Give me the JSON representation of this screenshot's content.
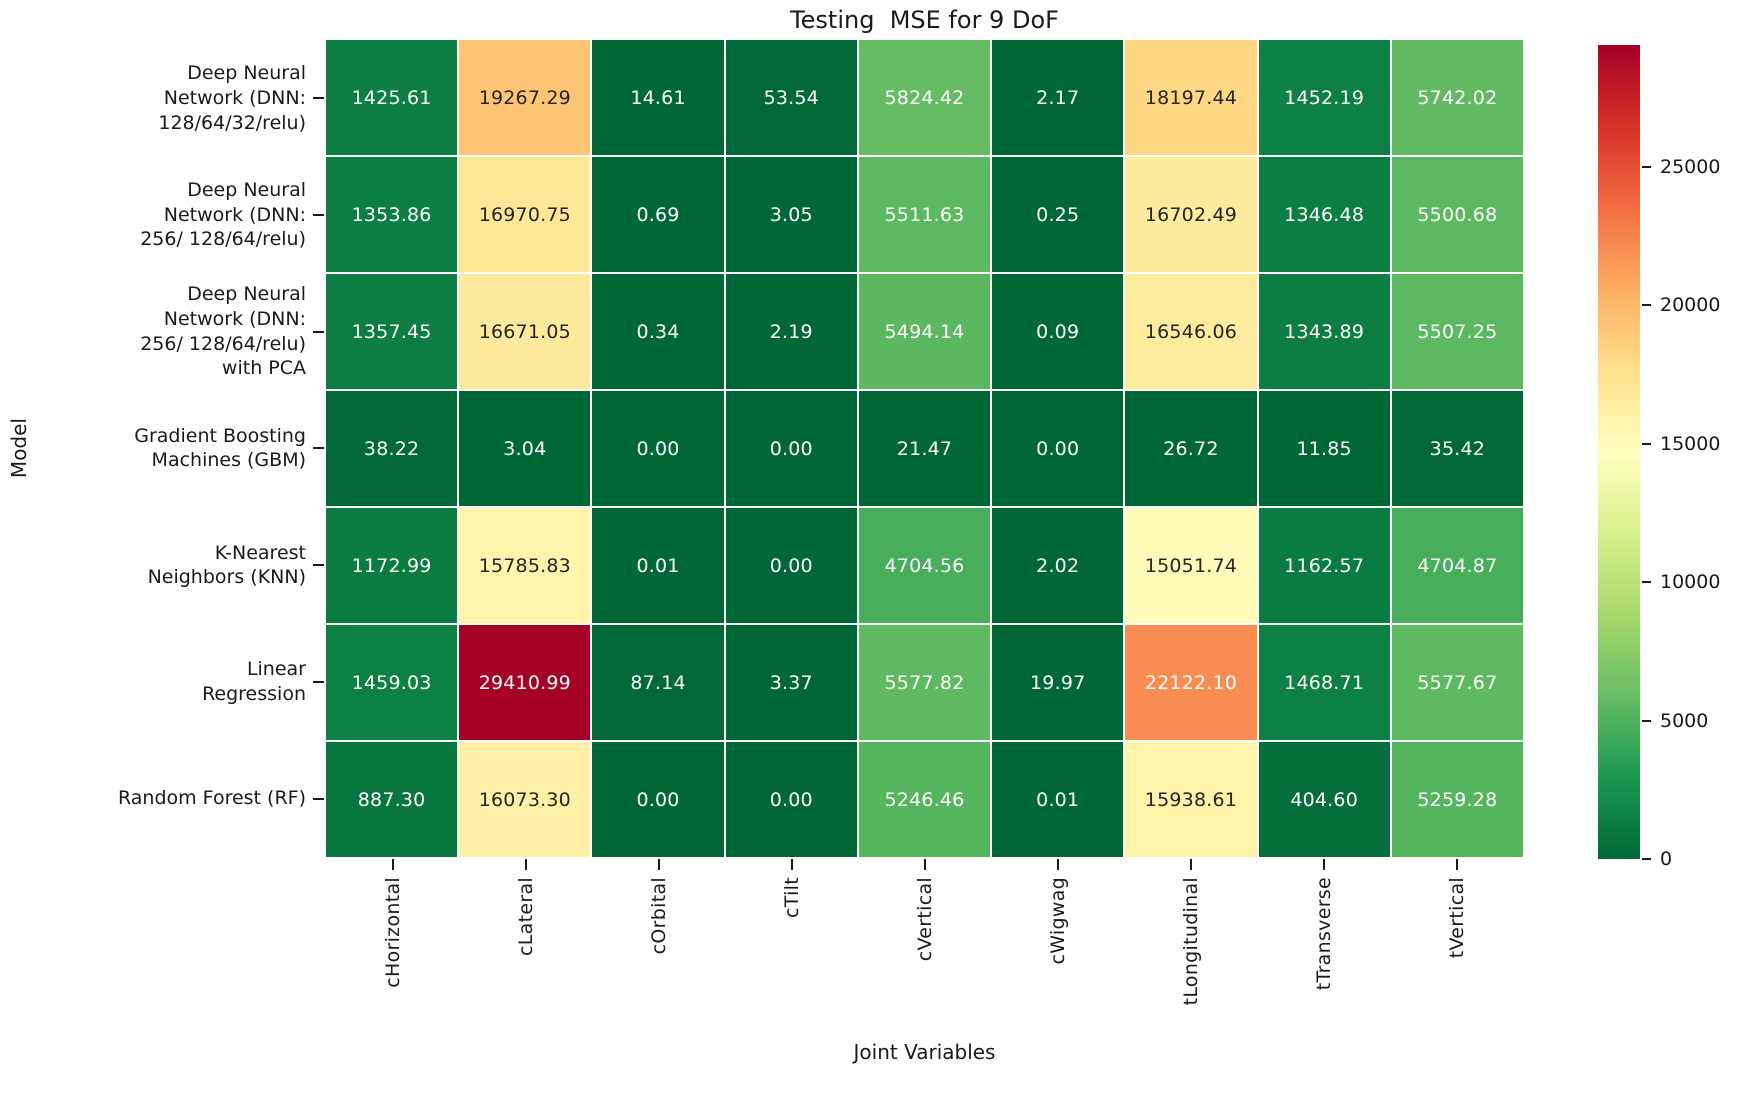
{
  "chart_data": {
    "type": "heatmap",
    "title": "Testing  MSE for 9 DoF",
    "xlabel": "Joint Variables",
    "ylabel": "Model",
    "x_categories": [
      "cHorizontal",
      "cLateral",
      "cOrbital",
      "cTilt",
      "cVertical",
      "cWigwag",
      "tLongitudinal",
      "tTransverse",
      "tVertical"
    ],
    "series": [
      {
        "name": "Deep Neural Network (DNN: 128/64/32/relu)",
        "label_lines": "Deep Neural\nNetwork (DNN:\n128/64/32/relu)",
        "values": [
          1425.61,
          19267.29,
          14.61,
          53.54,
          5824.42,
          2.17,
          18197.44,
          1452.19,
          5742.02
        ]
      },
      {
        "name": "Deep Neural Network (DNN: 256/ 128/64/relu)",
        "label_lines": "Deep Neural\nNetwork (DNN:\n256/ 128/64/relu)",
        "values": [
          1353.86,
          16970.75,
          0.69,
          3.05,
          5511.63,
          0.25,
          16702.49,
          1346.48,
          5500.68
        ]
      },
      {
        "name": "Deep Neural Network (DNN: 256/ 128/64/relu) with PCA",
        "label_lines": "Deep Neural\nNetwork (DNN:\n256/ 128/64/relu)\nwith PCA",
        "values": [
          1357.45,
          16671.05,
          0.34,
          2.19,
          5494.14,
          0.09,
          16546.06,
          1343.89,
          5507.25
        ]
      },
      {
        "name": "Gradient Boosting Machines (GBM)",
        "label_lines": "Gradient Boosting\nMachines (GBM)",
        "values": [
          38.22,
          3.04,
          0.0,
          0.0,
          21.47,
          0.0,
          26.72,
          11.85,
          35.42
        ]
      },
      {
        "name": "K-Nearest Neighbors (KNN)",
        "label_lines": "K-Nearest\nNeighbors (KNN)",
        "values": [
          1172.99,
          15785.83,
          0.01,
          0.0,
          4704.56,
          2.02,
          15051.74,
          1162.57,
          4704.87
        ]
      },
      {
        "name": "Linear Regression",
        "label_lines": "Linear\nRegression",
        "values": [
          1459.03,
          29410.99,
          87.14,
          3.37,
          5577.82,
          19.97,
          22122.1,
          1468.71,
          5577.67
        ]
      },
      {
        "name": "Random Forest (RF)",
        "label_lines": "Random Forest (RF)",
        "values": [
          887.3,
          16073.3,
          0.0,
          0.0,
          5246.46,
          0.01,
          15938.61,
          404.6,
          5259.28
        ]
      }
    ],
    "value_decimals": 2,
    "vmin": 0,
    "vmax": 29410.99,
    "colorbar_ticks": [
      0,
      5000,
      10000,
      15000,
      20000,
      25000
    ],
    "colormap": {
      "name": "RdYlGn_r",
      "anchors_low_to_high": [
        "#006837",
        "#1a9850",
        "#66bd63",
        "#a6d96a",
        "#d9ef8b",
        "#ffffbf",
        "#fee08b",
        "#fdae61",
        "#f46d43",
        "#d73027",
        "#a50026"
      ]
    },
    "annotation_text_colors": {
      "on_dark": "#ffffff",
      "on_light": "#262626"
    },
    "grid": "white 2px cell separators",
    "legend_position": "right-colorbar"
  }
}
